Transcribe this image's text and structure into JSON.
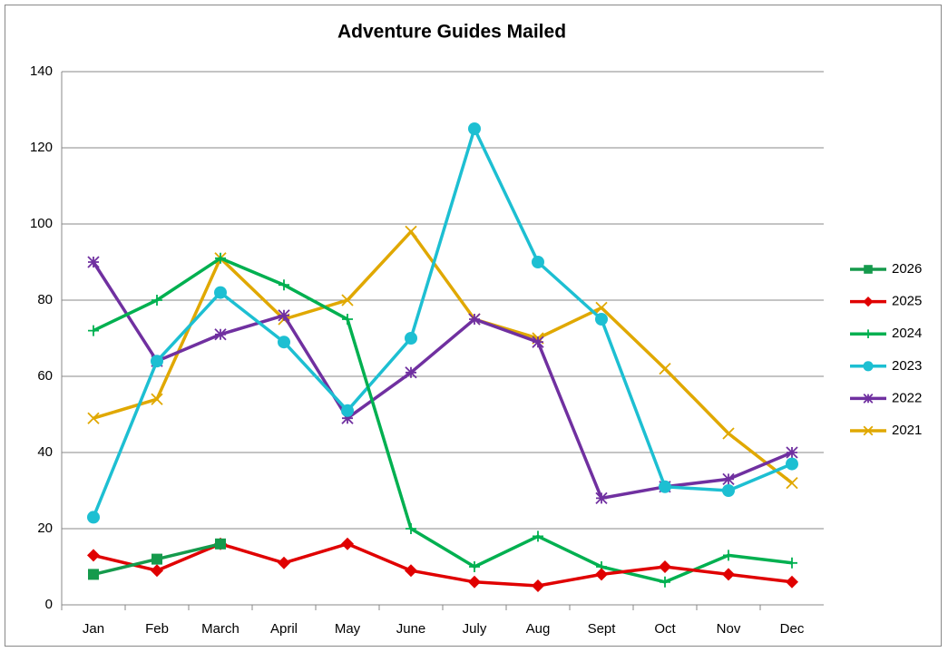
{
  "chart_data": {
    "type": "line",
    "title": "Adventure Guides Mailed",
    "categories": [
      "Jan",
      "Feb",
      "March",
      "April",
      "May",
      "June",
      "July",
      "Aug",
      "Sept",
      "Oct",
      "Nov",
      "Dec"
    ],
    "series": [
      {
        "name": "2026",
        "color": "#159a4c",
        "marker": "square",
        "values": [
          8,
          12,
          16,
          null,
          null,
          null,
          null,
          null,
          null,
          null,
          null,
          null
        ]
      },
      {
        "name": "2025",
        "color": "#e00000",
        "marker": "diamond",
        "values": [
          13,
          9,
          16,
          11,
          16,
          9,
          6,
          5,
          8,
          10,
          8,
          6
        ]
      },
      {
        "name": "2024",
        "color": "#00b050",
        "marker": "plus",
        "values": [
          72,
          80,
          91,
          84,
          75,
          20,
          10,
          18,
          10,
          6,
          13,
          11
        ]
      },
      {
        "name": "2023",
        "color": "#1dbfd2",
        "marker": "circle",
        "values": [
          23,
          64,
          82,
          69,
          51,
          70,
          125,
          90,
          75,
          31,
          30,
          37
        ]
      },
      {
        "name": "2022",
        "color": "#7030a0",
        "marker": "star",
        "values": [
          90,
          64,
          71,
          76,
          49,
          61,
          75,
          69,
          28,
          31,
          33,
          40
        ]
      },
      {
        "name": "2021",
        "color": "#e0a800",
        "marker": "x",
        "values": [
          49,
          54,
          91,
          75,
          80,
          98,
          75,
          70,
          78,
          62,
          45,
          32
        ]
      }
    ],
    "ylim": [
      0,
      140
    ],
    "yticks": [
      0,
      20,
      40,
      60,
      80,
      100,
      120,
      140
    ],
    "grid": true,
    "legend": "right"
  }
}
